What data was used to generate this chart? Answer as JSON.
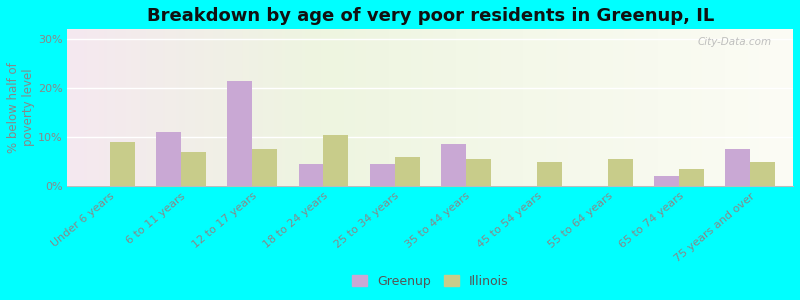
{
  "title": "Breakdown by age of very poor residents in Greenup, IL",
  "ylabel": "% below half of\npoverty level",
  "categories": [
    "Under 6 years",
    "6 to 11 years",
    "12 to 17 years",
    "18 to 24 years",
    "25 to 34 years",
    "35 to 44 years",
    "45 to 54 years",
    "55 to 64 years",
    "65 to 74 years",
    "75 years and over"
  ],
  "greenup_values": [
    0,
    11,
    21.5,
    4.5,
    4.5,
    8.5,
    0,
    0,
    2,
    7.5
  ],
  "illinois_values": [
    9,
    7,
    7.5,
    10.5,
    6,
    5.5,
    5,
    5.5,
    3.5,
    5
  ],
  "greenup_color": "#c9a8d4",
  "illinois_color": "#c8cc8a",
  "outer_bg": "#00ffff",
  "ylim": [
    0,
    32
  ],
  "yticks": [
    0,
    10,
    20,
    30
  ],
  "ytick_labels": [
    "0%",
    "10%",
    "20%",
    "30%"
  ],
  "bar_width": 0.35,
  "title_fontsize": 13,
  "axis_fontsize": 8.5,
  "tick_fontsize": 8,
  "legend_fontsize": 9,
  "watermark": "City-Data.com"
}
